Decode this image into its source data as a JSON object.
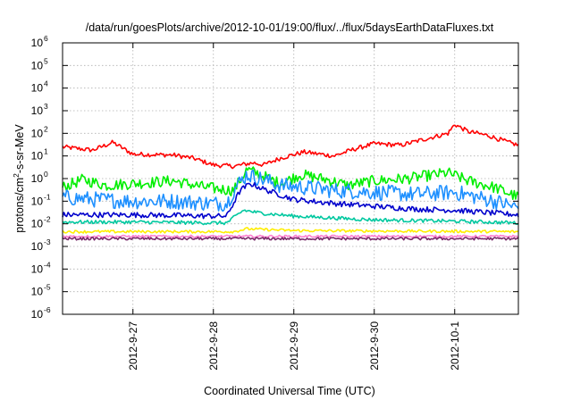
{
  "chart_data": {
    "type": "line",
    "title": "/data/run/goesPlots/archive/2012-10-01/19:00/flux/../flux/5daysEarthDataFluxes.txt",
    "xlabel": "Coordinated Universal Time (UTC)",
    "ylabel": "protons/cm²-s-sr-MeV",
    "ylabel_parts": [
      "protons/cm",
      "2",
      "-s-sr-MeV"
    ],
    "y_scale": "log",
    "ylim": [
      1e-06,
      1000000.0
    ],
    "y_ticks": [
      {
        "base": "10",
        "exp": "6",
        "value": 1000000.0
      },
      {
        "base": "10",
        "exp": "5",
        "value": 100000.0
      },
      {
        "base": "10",
        "exp": "4",
        "value": 10000.0
      },
      {
        "base": "10",
        "exp": "3",
        "value": 1000.0
      },
      {
        "base": "10",
        "exp": "2",
        "value": 100.0
      },
      {
        "base": "10",
        "exp": "1",
        "value": 10.0
      },
      {
        "base": "10",
        "exp": "0",
        "value": 1.0
      },
      {
        "base": "10",
        "exp": "-1",
        "value": 0.1
      },
      {
        "base": "10",
        "exp": "-2",
        "value": 0.01
      },
      {
        "base": "10",
        "exp": "-3",
        "value": 0.001
      },
      {
        "base": "10",
        "exp": "-4",
        "value": 0.0001
      },
      {
        "base": "10",
        "exp": "-5",
        "value": 1e-05
      },
      {
        "base": "10",
        "exp": "-6",
        "value": 1e-06
      }
    ],
    "xlim": [
      "2012-09-26T03:00",
      "2012-10-01T19:00"
    ],
    "x_ticks": [
      "2012-9-27",
      "2012-9-28",
      "2012-9-29",
      "2012-9-30",
      "2012-10-1"
    ],
    "grid": true,
    "series": [
      {
        "color": "#ff0000",
        "noise": 0.1,
        "points": [
          [
            "2012-09-26T03:00",
            25
          ],
          [
            "2012-09-26T12:00",
            18
          ],
          [
            "2012-09-26T18:00",
            40
          ],
          [
            "2012-09-27T00:00",
            12
          ],
          [
            "2012-09-27T12:00",
            11
          ],
          [
            "2012-09-27T18:00",
            8
          ],
          [
            "2012-09-28T00:00",
            4
          ],
          [
            "2012-09-28T06:00",
            3.5
          ],
          [
            "2012-09-28T12:00",
            5
          ],
          [
            "2012-09-28T15:00",
            4
          ],
          [
            "2012-09-28T20:00",
            8
          ],
          [
            "2012-09-29T03:00",
            15
          ],
          [
            "2012-09-29T12:00",
            10
          ],
          [
            "2012-09-29T18:00",
            20
          ],
          [
            "2012-09-30T00:00",
            35
          ],
          [
            "2012-09-30T08:00",
            30
          ],
          [
            "2012-09-30T16:00",
            60
          ],
          [
            "2012-09-30T22:00",
            100
          ],
          [
            "2012-10-01T00:00",
            250
          ],
          [
            "2012-10-01T04:00",
            120
          ],
          [
            "2012-10-01T10:00",
            80
          ],
          [
            "2012-10-01T16:00",
            40
          ],
          [
            "2012-10-01T19:00",
            30
          ]
        ]
      },
      {
        "color": "#00ee00",
        "noise": 0.25,
        "points": [
          [
            "2012-09-26T03:00",
            0.4
          ],
          [
            "2012-09-26T09:00",
            0.9
          ],
          [
            "2012-09-26T16:00",
            0.5
          ],
          [
            "2012-09-27T00:00",
            0.6
          ],
          [
            "2012-09-27T12:00",
            0.8
          ],
          [
            "2012-09-27T22:00",
            0.4
          ],
          [
            "2012-09-28T06:00",
            0.3
          ],
          [
            "2012-09-28T10:00",
            2.5
          ],
          [
            "2012-09-28T14:00",
            1.5
          ],
          [
            "2012-09-28T20:00",
            0.6
          ],
          [
            "2012-09-29T02:00",
            1.5
          ],
          [
            "2012-09-29T10:00",
            0.9
          ],
          [
            "2012-09-29T16:00",
            0.5
          ],
          [
            "2012-09-30T00:00",
            0.8
          ],
          [
            "2012-09-30T10:00",
            1.0
          ],
          [
            "2012-09-30T22:00",
            1.8
          ],
          [
            "2012-10-01T04:00",
            0.8
          ],
          [
            "2012-10-01T12:00",
            0.4
          ],
          [
            "2012-10-01T19:00",
            0.15
          ]
        ]
      },
      {
        "color": "#1e90ff",
        "noise": 0.35,
        "points": [
          [
            "2012-09-26T03:00",
            0.15
          ],
          [
            "2012-09-26T12:00",
            0.12
          ],
          [
            "2012-09-27T00:00",
            0.1
          ],
          [
            "2012-09-27T12:00",
            0.1
          ],
          [
            "2012-09-28T00:00",
            0.08
          ],
          [
            "2012-09-28T04:00",
            0.08
          ],
          [
            "2012-09-28T07:00",
            0.5
          ],
          [
            "2012-09-28T10:00",
            1.5
          ],
          [
            "2012-09-28T14:00",
            1.0
          ],
          [
            "2012-09-28T20:00",
            0.5
          ],
          [
            "2012-09-29T04:00",
            0.4
          ],
          [
            "2012-09-29T12:00",
            0.3
          ],
          [
            "2012-09-30T00:00",
            0.25
          ],
          [
            "2012-09-30T12:00",
            0.2
          ],
          [
            "2012-10-01T00:00",
            0.25
          ],
          [
            "2012-10-01T12:00",
            0.1
          ],
          [
            "2012-10-01T19:00",
            0.05
          ]
        ]
      },
      {
        "color": "#0000cc",
        "noise": 0.12,
        "points": [
          [
            "2012-09-26T03:00",
            0.025
          ],
          [
            "2012-09-27T00:00",
            0.025
          ],
          [
            "2012-09-28T00:00",
            0.022
          ],
          [
            "2012-09-28T04:00",
            0.022
          ],
          [
            "2012-09-28T08:00",
            0.3
          ],
          [
            "2012-09-28T11:00",
            0.6
          ],
          [
            "2012-09-28T16:00",
            0.3
          ],
          [
            "2012-09-29T00:00",
            0.12
          ],
          [
            "2012-09-29T12:00",
            0.08
          ],
          [
            "2012-09-30T00:00",
            0.06
          ],
          [
            "2012-09-30T12:00",
            0.045
          ],
          [
            "2012-10-01T00:00",
            0.04
          ],
          [
            "2012-10-01T19:00",
            0.025
          ]
        ]
      },
      {
        "color": "#00c8a0",
        "noise": 0.08,
        "points": [
          [
            "2012-09-26T03:00",
            0.012
          ],
          [
            "2012-09-27T00:00",
            0.012
          ],
          [
            "2012-09-28T00:00",
            0.011
          ],
          [
            "2012-09-28T04:00",
            0.011
          ],
          [
            "2012-09-28T09:00",
            0.04
          ],
          [
            "2012-09-28T14:00",
            0.03
          ],
          [
            "2012-09-29T00:00",
            0.022
          ],
          [
            "2012-09-29T12:00",
            0.018
          ],
          [
            "2012-09-30T00:00",
            0.015
          ],
          [
            "2012-10-01T00:00",
            0.013
          ],
          [
            "2012-10-01T19:00",
            0.011
          ]
        ]
      },
      {
        "color": "#ffee00",
        "noise": 0.06,
        "points": [
          [
            "2012-09-26T03:00",
            0.0045
          ],
          [
            "2012-09-28T06:00",
            0.0045
          ],
          [
            "2012-09-28T10:00",
            0.006
          ],
          [
            "2012-09-29T00:00",
            0.005
          ],
          [
            "2012-10-01T19:00",
            0.0045
          ]
        ]
      },
      {
        "color": "#ff7fd0",
        "noise": 0.05,
        "points": [
          [
            "2012-09-26T03:00",
            0.0028
          ],
          [
            "2012-10-01T19:00",
            0.0028
          ]
        ]
      },
      {
        "color": "#7a2a6a",
        "noise": 0.06,
        "points": [
          [
            "2012-09-26T03:00",
            0.0022
          ],
          [
            "2012-10-01T19:00",
            0.0022
          ]
        ]
      }
    ]
  }
}
